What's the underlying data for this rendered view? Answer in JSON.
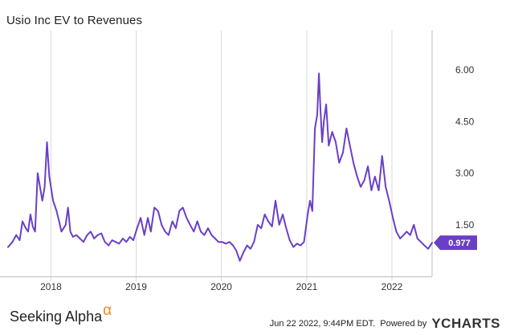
{
  "title": "Usio Inc EV to Revenues",
  "footer": {
    "brand": "Seeking Alpha",
    "brand_mark": "α",
    "timestamp": "Jun 22 2022, 9:44PM EDT.",
    "powered_by": "Powered by",
    "logo": "YCHARTS"
  },
  "colors": {
    "line": "#6a3fc7",
    "grid": "#d9d9d9",
    "last_badge": "#6a3fc7"
  },
  "chart_data": {
    "type": "line",
    "ylim": [
      0,
      7.1
    ],
    "xlim": [
      "2017-07-01",
      "2022-06-22"
    ],
    "y_ticks": [
      "1.50",
      "3.00",
      "4.50",
      "6.00"
    ],
    "y_tick_values": [
      1.5,
      3.0,
      4.5,
      6.0
    ],
    "x_ticks": [
      "2018",
      "2019",
      "2020",
      "2021",
      "2022"
    ],
    "x_tick_dates": [
      "2018-01-01",
      "2019-01-01",
      "2020-01-01",
      "2021-01-01",
      "2022-01-01"
    ],
    "grid": "vertical at year ticks",
    "last_value_label": "0.977",
    "series": [
      {
        "values": [
          [
            "2017-07-01",
            0.85
          ],
          [
            "2017-07-20",
            1.0
          ],
          [
            "2017-08-05",
            1.2
          ],
          [
            "2017-08-20",
            1.05
          ],
          [
            "2017-09-01",
            1.6
          ],
          [
            "2017-09-15",
            1.4
          ],
          [
            "2017-09-25",
            1.3
          ],
          [
            "2017-10-05",
            1.8
          ],
          [
            "2017-10-15",
            1.45
          ],
          [
            "2017-10-25",
            1.3
          ],
          [
            "2017-11-05",
            3.0
          ],
          [
            "2017-11-15",
            2.6
          ],
          [
            "2017-11-25",
            2.2
          ],
          [
            "2017-12-05",
            2.6
          ],
          [
            "2017-12-15",
            3.9
          ],
          [
            "2017-12-25",
            2.9
          ],
          [
            "2018-01-10",
            2.2
          ],
          [
            "2018-01-25",
            1.9
          ],
          [
            "2018-02-05",
            1.6
          ],
          [
            "2018-02-15",
            1.3
          ],
          [
            "2018-03-05",
            1.5
          ],
          [
            "2018-03-15",
            2.0
          ],
          [
            "2018-03-25",
            1.3
          ],
          [
            "2018-04-05",
            1.15
          ],
          [
            "2018-04-20",
            1.2
          ],
          [
            "2018-05-05",
            1.1
          ],
          [
            "2018-05-20",
            1.0
          ],
          [
            "2018-06-05",
            1.2
          ],
          [
            "2018-06-20",
            1.3
          ],
          [
            "2018-07-05",
            1.1
          ],
          [
            "2018-07-20",
            1.2
          ],
          [
            "2018-08-05",
            1.25
          ],
          [
            "2018-08-20",
            1.0
          ],
          [
            "2018-09-05",
            0.9
          ],
          [
            "2018-09-20",
            1.05
          ],
          [
            "2018-10-05",
            1.0
          ],
          [
            "2018-10-20",
            0.95
          ],
          [
            "2018-11-05",
            1.1
          ],
          [
            "2018-11-20",
            1.0
          ],
          [
            "2018-12-05",
            1.15
          ],
          [
            "2018-12-20",
            1.05
          ],
          [
            "2019-01-05",
            1.4
          ],
          [
            "2019-01-20",
            1.7
          ],
          [
            "2019-02-05",
            1.2
          ],
          [
            "2019-02-20",
            1.7
          ],
          [
            "2019-03-05",
            1.3
          ],
          [
            "2019-03-20",
            2.0
          ],
          [
            "2019-04-05",
            1.9
          ],
          [
            "2019-04-20",
            1.5
          ],
          [
            "2019-05-05",
            1.3
          ],
          [
            "2019-05-20",
            1.2
          ],
          [
            "2019-06-05",
            1.6
          ],
          [
            "2019-06-20",
            1.4
          ],
          [
            "2019-07-05",
            1.9
          ],
          [
            "2019-07-20",
            2.0
          ],
          [
            "2019-08-05",
            1.7
          ],
          [
            "2019-08-20",
            1.5
          ],
          [
            "2019-09-05",
            1.3
          ],
          [
            "2019-09-20",
            1.6
          ],
          [
            "2019-10-05",
            1.3
          ],
          [
            "2019-10-20",
            1.2
          ],
          [
            "2019-11-05",
            1.4
          ],
          [
            "2019-11-20",
            1.2
          ],
          [
            "2019-12-05",
            1.1
          ],
          [
            "2019-12-20",
            1.0
          ],
          [
            "2020-01-05",
            1.0
          ],
          [
            "2020-01-20",
            0.95
          ],
          [
            "2020-02-05",
            1.0
          ],
          [
            "2020-02-20",
            0.9
          ],
          [
            "2020-03-05",
            0.75
          ],
          [
            "2020-03-20",
            0.45
          ],
          [
            "2020-04-05",
            0.7
          ],
          [
            "2020-04-20",
            0.9
          ],
          [
            "2020-05-05",
            0.8
          ],
          [
            "2020-05-20",
            1.0
          ],
          [
            "2020-06-05",
            1.5
          ],
          [
            "2020-06-20",
            1.4
          ],
          [
            "2020-07-05",
            1.8
          ],
          [
            "2020-07-20",
            1.6
          ],
          [
            "2020-08-05",
            1.45
          ],
          [
            "2020-08-20",
            2.2
          ],
          [
            "2020-09-05",
            1.5
          ],
          [
            "2020-09-20",
            1.8
          ],
          [
            "2020-10-05",
            1.4
          ],
          [
            "2020-10-20",
            1.05
          ],
          [
            "2020-11-05",
            0.85
          ],
          [
            "2020-11-20",
            0.95
          ],
          [
            "2020-12-05",
            0.9
          ],
          [
            "2020-12-20",
            1.0
          ],
          [
            "2021-01-05",
            1.8
          ],
          [
            "2021-01-15",
            2.2
          ],
          [
            "2021-01-25",
            1.9
          ],
          [
            "2021-02-05",
            4.3
          ],
          [
            "2021-02-15",
            4.7
          ],
          [
            "2021-02-22",
            5.9
          ],
          [
            "2021-03-01",
            4.8
          ],
          [
            "2021-03-08",
            3.9
          ],
          [
            "2021-03-15",
            4.5
          ],
          [
            "2021-03-25",
            5.0
          ],
          [
            "2021-04-05",
            3.8
          ],
          [
            "2021-04-20",
            4.2
          ],
          [
            "2021-05-05",
            3.9
          ],
          [
            "2021-05-20",
            3.3
          ],
          [
            "2021-06-05",
            3.6
          ],
          [
            "2021-06-20",
            4.3
          ],
          [
            "2021-07-05",
            3.8
          ],
          [
            "2021-07-20",
            3.3
          ],
          [
            "2021-08-05",
            2.9
          ],
          [
            "2021-08-20",
            2.6
          ],
          [
            "2021-09-05",
            2.8
          ],
          [
            "2021-09-20",
            3.2
          ],
          [
            "2021-10-05",
            2.5
          ],
          [
            "2021-10-20",
            2.9
          ],
          [
            "2021-11-05",
            2.5
          ],
          [
            "2021-11-20",
            3.5
          ],
          [
            "2021-12-05",
            2.6
          ],
          [
            "2021-12-20",
            2.2
          ],
          [
            "2022-01-05",
            1.7
          ],
          [
            "2022-01-20",
            1.3
          ],
          [
            "2022-02-05",
            1.1
          ],
          [
            "2022-02-20",
            1.2
          ],
          [
            "2022-03-05",
            1.3
          ],
          [
            "2022-03-20",
            1.2
          ],
          [
            "2022-04-05",
            1.5
          ],
          [
            "2022-04-20",
            1.1
          ],
          [
            "2022-05-05",
            1.0
          ],
          [
            "2022-05-20",
            0.9
          ],
          [
            "2022-06-05",
            0.8
          ],
          [
            "2022-06-22",
            0.977
          ]
        ]
      }
    ]
  }
}
